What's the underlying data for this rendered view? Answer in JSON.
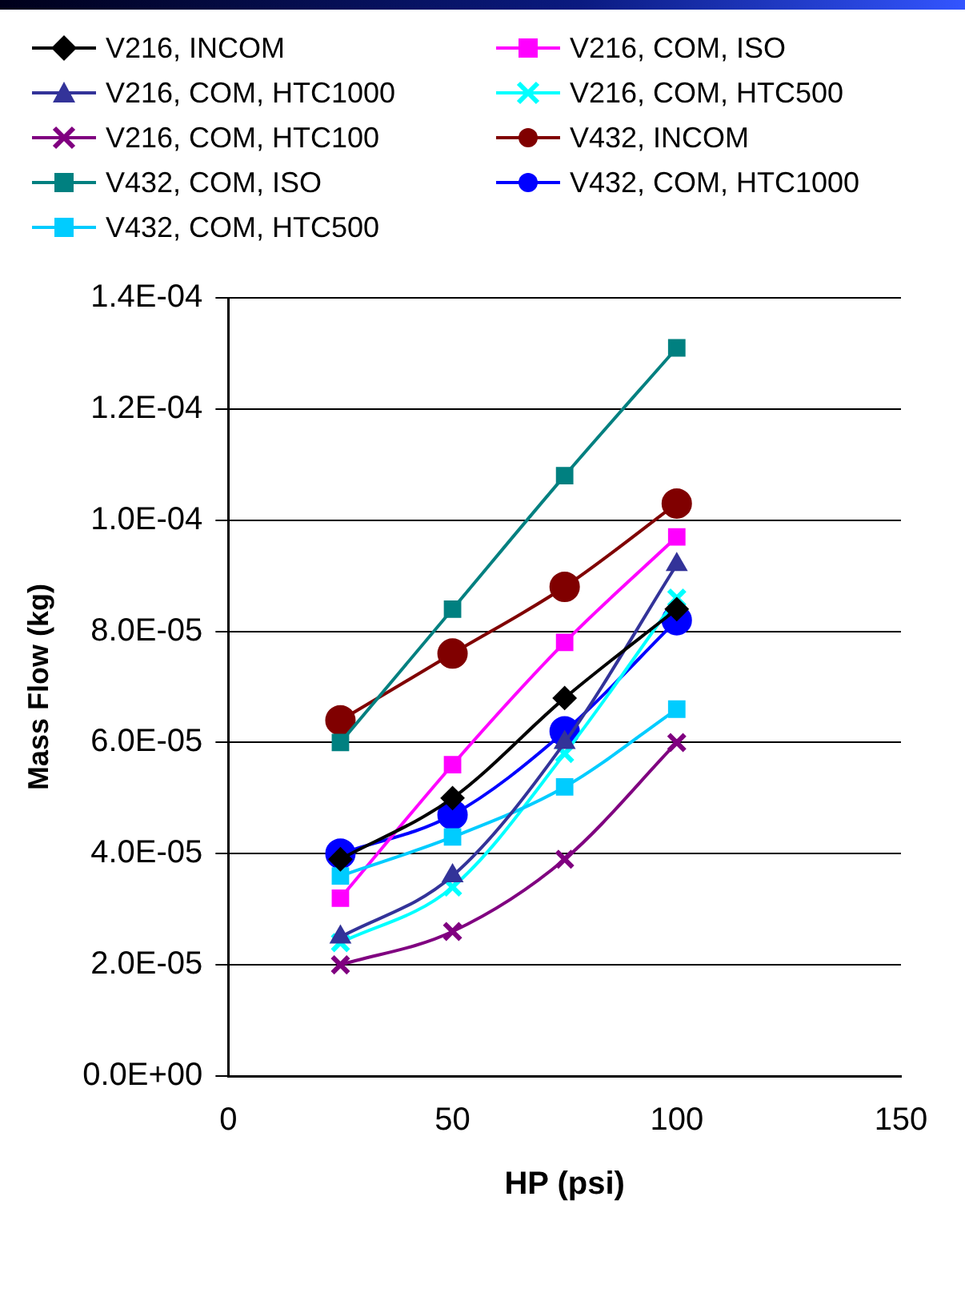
{
  "chart_data": {
    "type": "line",
    "xlabel": "HP (psi)",
    "ylabel": "Mass Flow (kg)",
    "x": [
      25,
      50,
      75,
      100
    ],
    "xlim": [
      0,
      150
    ],
    "xticks": [
      0,
      50,
      100,
      150
    ],
    "ylim": [
      0,
      0.00014
    ],
    "yticks": [
      {
        "value": 0,
        "label": "0.0E+00"
      },
      {
        "value": 2e-05,
        "label": "2.0E-05"
      },
      {
        "value": 4e-05,
        "label": "4.0E-05"
      },
      {
        "value": 6e-05,
        "label": "6.0E-05"
      },
      {
        "value": 8e-05,
        "label": "8.0E-05"
      },
      {
        "value": 0.0001,
        "label": "1.0E-04"
      },
      {
        "value": 0.00012,
        "label": "1.2E-04"
      },
      {
        "value": 0.00014,
        "label": "1.4E-04"
      }
    ],
    "grid": "y",
    "legend": "top",
    "series": [
      {
        "name": "V216, INCOM",
        "color": "#000000",
        "marker": "diamond",
        "values": [
          3.9e-05,
          5e-05,
          6.8e-05,
          8.4e-05
        ]
      },
      {
        "name": "V216, COM, HTC1000",
        "color": "#333399",
        "marker": "triangle",
        "values": [
          2.5e-05,
          3.6e-05,
          6e-05,
          9.2e-05
        ]
      },
      {
        "name": "V216, COM, HTC100",
        "color": "#800080",
        "marker": "cross",
        "values": [
          2e-05,
          2.6e-05,
          3.9e-05,
          6e-05
        ]
      },
      {
        "name": "V432, COM, ISO",
        "color": "#008080",
        "marker": "square",
        "values": [
          6e-05,
          8.4e-05,
          0.000108,
          0.000131
        ]
      },
      {
        "name": "V432, COM, HTC500",
        "color": "#00ccff",
        "marker": "square",
        "values": [
          3.6e-05,
          4.3e-05,
          5.2e-05,
          6.6e-05
        ]
      },
      {
        "name": "V216, COM, ISO",
        "color": "#ff00ff",
        "marker": "square",
        "values": [
          3.2e-05,
          5.6e-05,
          7.8e-05,
          9.7e-05
        ]
      },
      {
        "name": "V216, COM, HTC500",
        "color": "#00ffff",
        "marker": "cross",
        "values": [
          2.4e-05,
          3.4e-05,
          5.8e-05,
          8.6e-05
        ]
      },
      {
        "name": "V432, INCOM",
        "color": "#800000",
        "marker": "circle",
        "values": [
          6.4e-05,
          7.6e-05,
          8.8e-05,
          0.000103
        ]
      },
      {
        "name": "V432, COM, HTC1000",
        "color": "#0000ff",
        "marker": "circle",
        "values": [
          4e-05,
          4.7e-05,
          6.2e-05,
          8.2e-05
        ]
      }
    ]
  }
}
